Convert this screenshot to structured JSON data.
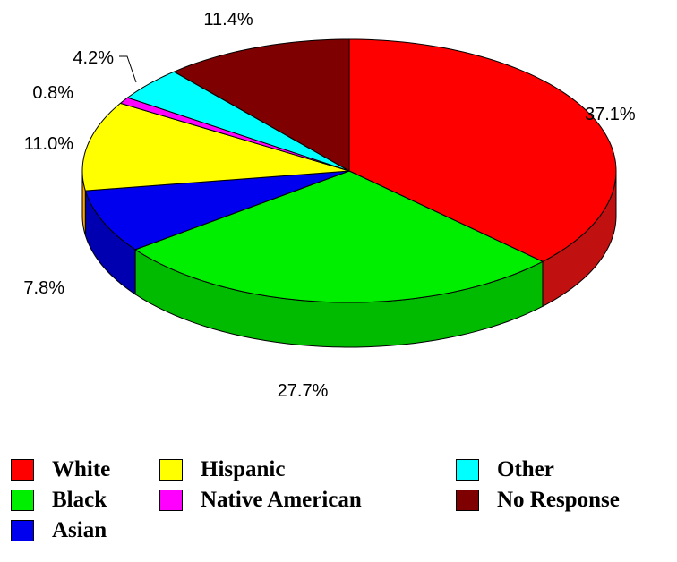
{
  "chart_data": {
    "type": "pie",
    "categories": [
      "White",
      "Black",
      "Asian",
      "Hispanic",
      "Native American",
      "Other",
      "No Response"
    ],
    "values": [
      37.1,
      27.7,
      7.8,
      11.0,
      0.8,
      4.2,
      11.4
    ],
    "labels": [
      "37.1%",
      "27.7%",
      "7.8%",
      "11.0%",
      "0.8%",
      "4.2%",
      "11.4%"
    ],
    "colors": [
      "#ff0000",
      "#00ee00",
      "#0000ee",
      "#ffff00",
      "#ff00ff",
      "#00ffff",
      "#7f0000"
    ],
    "side_colors": [
      "#c01010",
      "#00bb00",
      "#0000b0",
      "#ffa500",
      "#cc00cc",
      "#00cccc",
      "#500000"
    ],
    "legend_position": "bottom",
    "style": "3d"
  }
}
